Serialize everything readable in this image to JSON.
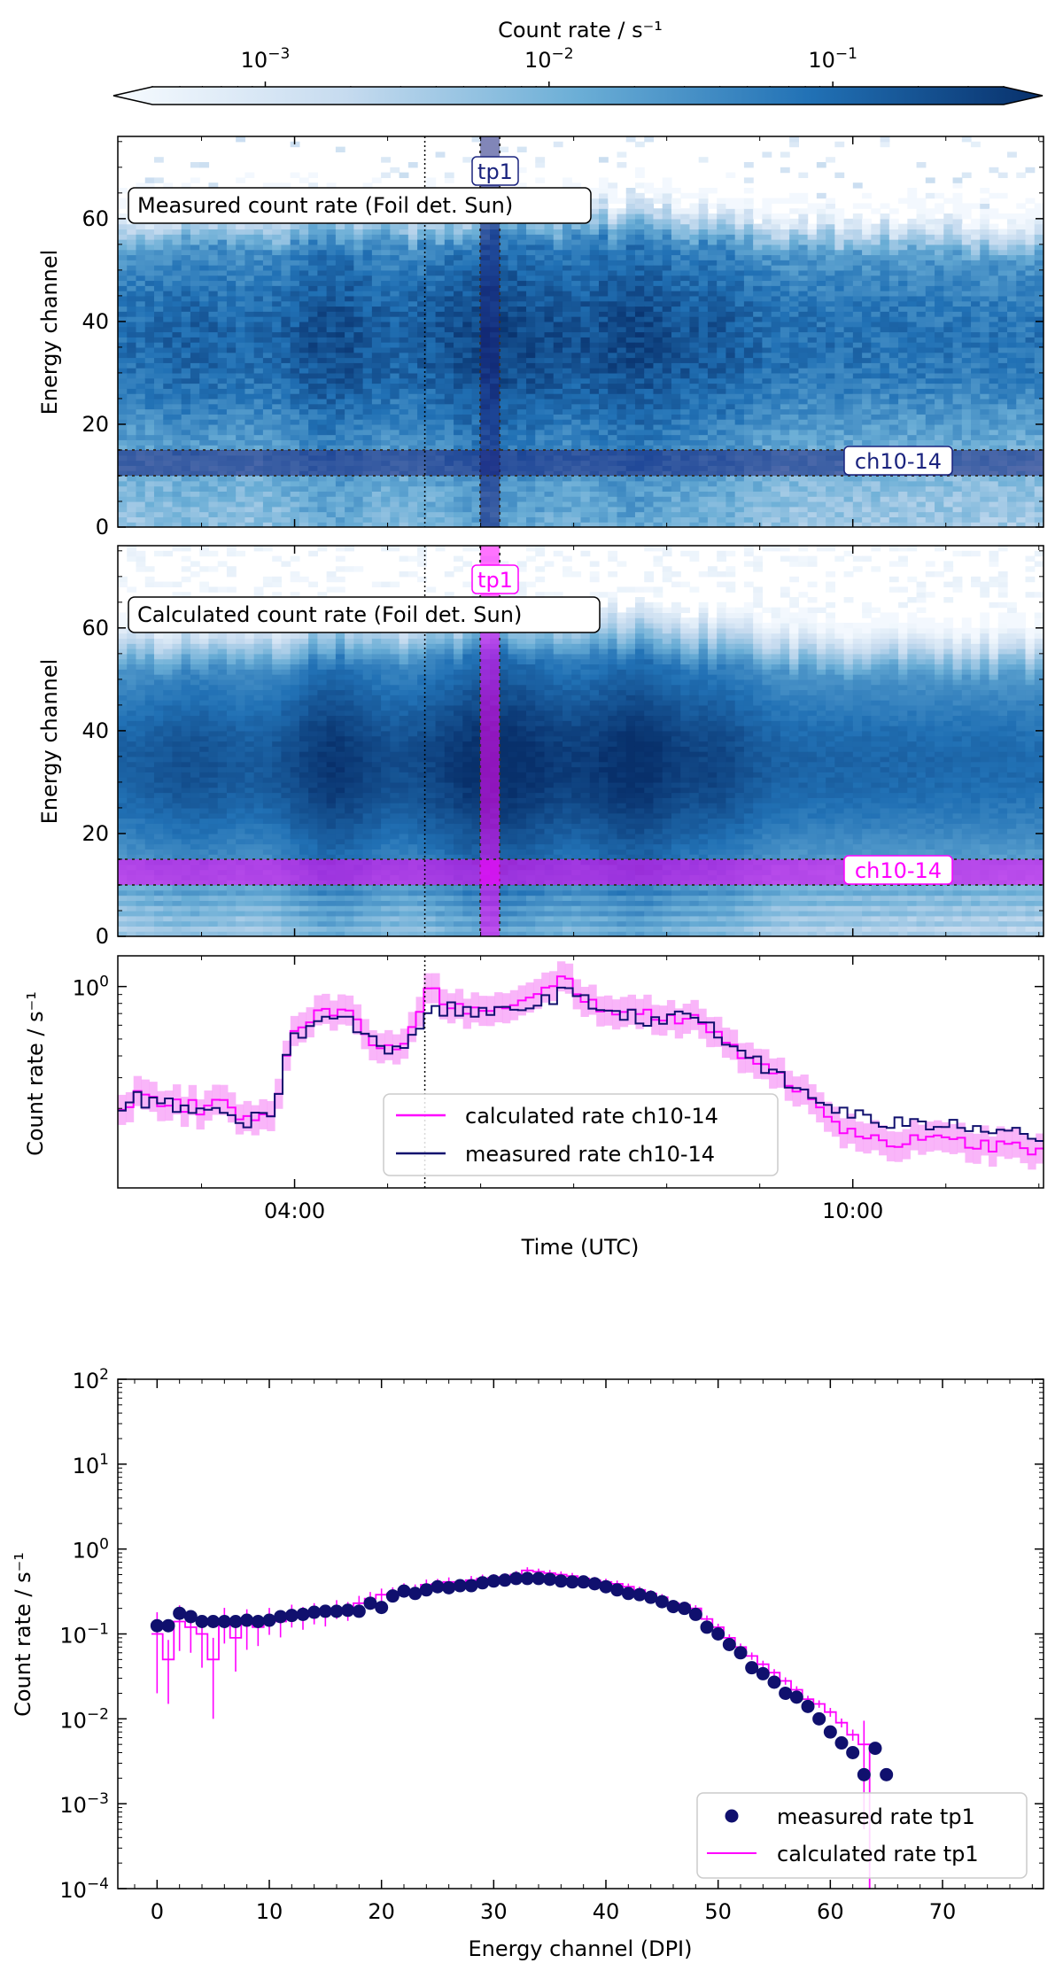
{
  "chart_data": [
    {
      "type": "colorbar",
      "label": "Count rate / s⁻¹",
      "scale": "log",
      "ticks": [
        {
          "base": "10",
          "exp": "−3",
          "value": 0.001
        },
        {
          "base": "10",
          "exp": "−2",
          "value": 0.01
        },
        {
          "base": "10",
          "exp": "−1",
          "value": 0.1
        }
      ],
      "range": [
        0.0004,
        0.4
      ],
      "extend": "both",
      "colors": [
        "#f7fbff",
        "#c6dbef",
        "#6baed6",
        "#2171b5",
        "#08306b"
      ]
    },
    {
      "type": "heatmap",
      "title": "Measured count rate (Foil det. Sun)",
      "ylabel": "Energy channel",
      "xrange_hours": [
        2.1,
        12.05
      ],
      "ylim": [
        0,
        76
      ],
      "yticks": [
        0,
        20,
        40,
        60
      ],
      "marker_time_label": "tp1",
      "marker_time_hours": 6.1,
      "marker_band_label": "ch10-14",
      "marker_band_channels": [
        10,
        15
      ],
      "vline_hours": 5.4,
      "highlight_color": "#1a237e"
    },
    {
      "type": "heatmap",
      "title": "Calculated count rate (Foil det. Sun)",
      "ylabel": "Energy channel",
      "xrange_hours": [
        2.1,
        12.05
      ],
      "ylim": [
        0,
        76
      ],
      "yticks": [
        0,
        20,
        40,
        60
      ],
      "marker_time_label": "tp1",
      "marker_time_hours": 6.1,
      "marker_band_label": "ch10-14",
      "marker_band_channels": [
        10,
        15
      ],
      "vline_hours": 5.4,
      "highlight_color": "#ff00ff"
    },
    {
      "type": "line",
      "ylabel": "Count rate / s⁻¹",
      "xlabel": "Time (UTC)",
      "xticks": [
        {
          "label": "04:00",
          "hours": 4.0
        },
        {
          "label": "10:00",
          "hours": 10.0
        }
      ],
      "ytick_label": {
        "base": "10",
        "exp": "0",
        "value": 1.0
      },
      "yrange": [
        0.07,
        1.5
      ],
      "xrange_hours": [
        2.1,
        12.05
      ],
      "vline_hours": 5.4,
      "legend": [
        "calculated rate ch10-14",
        "measured rate ch10-14"
      ],
      "legend_position": "lower center",
      "series": [
        {
          "name": "calculated rate ch10-14",
          "color": "#ff00ff",
          "band_color": "#f7a3f7",
          "anchors": [
            [
              2.1,
              0.18
            ],
            [
              2.3,
              0.24
            ],
            [
              2.6,
              0.22
            ],
            [
              3.0,
              0.2
            ],
            [
              3.2,
              0.21
            ],
            [
              3.5,
              0.18
            ],
            [
              3.8,
              0.2
            ],
            [
              4.0,
              0.58
            ],
            [
              4.3,
              0.72
            ],
            [
              4.6,
              0.68
            ],
            [
              4.9,
              0.45
            ],
            [
              5.1,
              0.42
            ],
            [
              5.3,
              0.62
            ],
            [
              5.45,
              0.95
            ],
            [
              5.7,
              0.78
            ],
            [
              6.0,
              0.72
            ],
            [
              6.2,
              0.72
            ],
            [
              6.5,
              0.8
            ],
            [
              6.9,
              1.1
            ],
            [
              7.2,
              0.8
            ],
            [
              7.6,
              0.7
            ],
            [
              8.0,
              0.65
            ],
            [
              8.3,
              0.7
            ],
            [
              8.6,
              0.48
            ],
            [
              8.9,
              0.4
            ],
            [
              9.2,
              0.3
            ],
            [
              9.6,
              0.22
            ],
            [
              9.9,
              0.155
            ],
            [
              10.2,
              0.135
            ],
            [
              10.6,
              0.13
            ],
            [
              11.0,
              0.13
            ],
            [
              11.4,
              0.125
            ],
            [
              12.0,
              0.115
            ]
          ]
        },
        {
          "name": "measured rate ch10-14",
          "color": "#10106e",
          "anchors": [
            [
              2.1,
              0.17
            ],
            [
              2.3,
              0.23
            ],
            [
              2.6,
              0.21
            ],
            [
              3.0,
              0.19
            ],
            [
              3.2,
              0.2
            ],
            [
              3.5,
              0.17
            ],
            [
              3.8,
              0.19
            ],
            [
              4.0,
              0.53
            ],
            [
              4.3,
              0.65
            ],
            [
              4.6,
              0.62
            ],
            [
              4.9,
              0.45
            ],
            [
              5.1,
              0.44
            ],
            [
              5.3,
              0.55
            ],
            [
              5.45,
              0.72
            ],
            [
              5.7,
              0.74
            ],
            [
              6.0,
              0.7
            ],
            [
              6.2,
              0.7
            ],
            [
              6.5,
              0.78
            ],
            [
              6.9,
              0.92
            ],
            [
              7.2,
              0.78
            ],
            [
              7.6,
              0.68
            ],
            [
              8.0,
              0.64
            ],
            [
              8.3,
              0.68
            ],
            [
              8.6,
              0.49
            ],
            [
              8.9,
              0.4
            ],
            [
              9.2,
              0.3
            ],
            [
              9.6,
              0.22
            ],
            [
              9.9,
              0.195
            ],
            [
              10.2,
              0.17
            ],
            [
              10.6,
              0.16
            ],
            [
              11.0,
              0.165
            ],
            [
              11.4,
              0.16
            ],
            [
              12.0,
              0.14
            ]
          ]
        }
      ]
    },
    {
      "type": "scatter",
      "xlabel": "Energy channel (DPI)",
      "ylabel": "Count rate / s⁻¹",
      "xlim": [
        -3.5,
        79
      ],
      "xticks": [
        0,
        10,
        20,
        30,
        40,
        50,
        60,
        70
      ],
      "ylim_log10": [
        -4,
        2
      ],
      "yticks": [
        {
          "base": "10",
          "exp": "2"
        },
        {
          "base": "10",
          "exp": "1"
        },
        {
          "base": "10",
          "exp": "0"
        },
        {
          "base": "10",
          "exp": "−1"
        },
        {
          "base": "10",
          "exp": "−2"
        },
        {
          "base": "10",
          "exp": "−3"
        },
        {
          "base": "10",
          "exp": "−4"
        }
      ],
      "legend": [
        "measured rate tp1",
        "calculated rate tp1"
      ],
      "legend_position": "lower right",
      "series": [
        {
          "name": "measured rate tp1",
          "kind": "points",
          "color": "#10106e",
          "x": [
            0,
            1,
            2,
            3,
            4,
            5,
            6,
            7,
            8,
            9,
            10,
            11,
            12,
            13,
            14,
            15,
            16,
            17,
            18,
            19,
            20,
            21,
            22,
            23,
            24,
            25,
            26,
            27,
            28,
            29,
            30,
            31,
            32,
            33,
            34,
            35,
            36,
            37,
            38,
            39,
            40,
            41,
            42,
            43,
            44,
            45,
            46,
            47,
            48,
            49,
            50,
            51,
            52,
            53,
            54,
            55,
            56,
            57,
            58,
            59,
            60,
            61,
            62,
            63,
            64,
            65
          ],
          "y": [
            0.125,
            0.125,
            0.175,
            0.16,
            0.14,
            0.14,
            0.14,
            0.14,
            0.145,
            0.14,
            0.145,
            0.16,
            0.165,
            0.17,
            0.18,
            0.185,
            0.185,
            0.19,
            0.185,
            0.23,
            0.205,
            0.28,
            0.32,
            0.3,
            0.33,
            0.36,
            0.35,
            0.37,
            0.37,
            0.4,
            0.42,
            0.43,
            0.45,
            0.45,
            0.45,
            0.44,
            0.42,
            0.41,
            0.41,
            0.39,
            0.36,
            0.33,
            0.3,
            0.29,
            0.27,
            0.24,
            0.21,
            0.2,
            0.17,
            0.12,
            0.1,
            0.075,
            0.06,
            0.04,
            0.034,
            0.027,
            0.02,
            0.018,
            0.014,
            0.01,
            0.007,
            0.0052,
            0.004,
            0.0022,
            0.0045,
            0.0022
          ]
        },
        {
          "name": "calculated rate tp1",
          "kind": "step",
          "color": "#ff00ff",
          "x": [
            0,
            1,
            2,
            3,
            4,
            5,
            6,
            7,
            8,
            9,
            10,
            11,
            12,
            13,
            14,
            15,
            16,
            17,
            18,
            19,
            20,
            21,
            22,
            23,
            24,
            25,
            26,
            27,
            28,
            29,
            30,
            31,
            32,
            33,
            34,
            35,
            36,
            37,
            38,
            39,
            40,
            41,
            42,
            43,
            44,
            45,
            46,
            47,
            48,
            49,
            50,
            51,
            52,
            53,
            54,
            55,
            56,
            57,
            58,
            59,
            60,
            61,
            62,
            63
          ],
          "y": [
            0.1,
            0.05,
            0.14,
            0.12,
            0.1,
            0.05,
            0.14,
            0.09,
            0.13,
            0.12,
            0.15,
            0.14,
            0.17,
            0.16,
            0.18,
            0.17,
            0.2,
            0.19,
            0.23,
            0.26,
            0.29,
            0.3,
            0.34,
            0.33,
            0.38,
            0.39,
            0.41,
            0.39,
            0.43,
            0.45,
            0.46,
            0.47,
            0.5,
            0.56,
            0.54,
            0.52,
            0.5,
            0.48,
            0.45,
            0.43,
            0.41,
            0.39,
            0.36,
            0.33,
            0.3,
            0.27,
            0.23,
            0.22,
            0.2,
            0.15,
            0.12,
            0.09,
            0.07,
            0.055,
            0.044,
            0.035,
            0.028,
            0.022,
            0.017,
            0.015,
            0.012,
            0.009,
            0.0065,
            0.005
          ],
          "err_frac": [
            0.8,
            0.7,
            0.55,
            0.5,
            0.6,
            0.8,
            0.45,
            0.6,
            0.5,
            0.4,
            0.35,
            0.35,
            0.3,
            0.3,
            0.28,
            0.28,
            0.25,
            0.25,
            0.22,
            0.2,
            0.18,
            0.18,
            0.16,
            0.16,
            0.15,
            0.14,
            0.13,
            0.13,
            0.12,
            0.11,
            0.1,
            0.1,
            0.1,
            0.09,
            0.09,
            0.09,
            0.09,
            0.09,
            0.09,
            0.09,
            0.09,
            0.09,
            0.09,
            0.09,
            0.09,
            0.09,
            0.09,
            0.09,
            0.09,
            0.1,
            0.1,
            0.1,
            0.1,
            0.1,
            0.1,
            0.1,
            0.1,
            0.1,
            0.1,
            0.1,
            0.12,
            0.12,
            0.15,
            0.9
          ]
        }
      ]
    }
  ]
}
